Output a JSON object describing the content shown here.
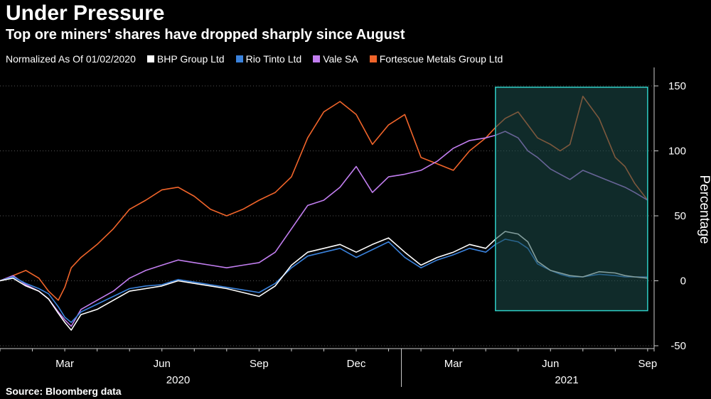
{
  "title": "Under Pressure",
  "subtitle": "Top ore miners' shares have dropped sharply since August",
  "legend_prefix": "Normalized As Of 01/02/2020",
  "source": "Source: Bloomberg data",
  "colors": {
    "background": "#000000",
    "grid": "#555555",
    "highlight_fill": "#1e4f4c",
    "highlight_stroke": "#2fd0c8"
  },
  "chart_data": {
    "type": "line",
    "title": "Under Pressure",
    "subtitle": "Top ore miners' shares have dropped sharply since August",
    "xlabel": "",
    "ylabel": "Percentage",
    "ylim": [
      -50,
      150
    ],
    "y_ticks": [
      -50,
      0,
      50,
      100,
      150
    ],
    "x_ticks": [
      "Mar",
      "Jun",
      "Sep",
      "Dec",
      "Mar",
      "Jun",
      "Sep"
    ],
    "x_tick_months": [
      2,
      5,
      8,
      11,
      14,
      17,
      20
    ],
    "x_year_labels": [
      "2020",
      "2021"
    ],
    "x_year_centers": [
      5.5,
      17.5
    ],
    "xlim": [
      0,
      20.2
    ],
    "grid": "horizontal dotted",
    "legend_position": "top",
    "highlight_region": {
      "x": [
        15.3,
        20.0
      ],
      "y": [
        -23,
        149
      ]
    },
    "series": [
      {
        "name": "BHP Group Ltd",
        "color": "#ffffff",
        "x": [
          0,
          0.4,
          0.8,
          1.2,
          1.5,
          1.8,
          2.0,
          2.2,
          2.5,
          3.0,
          3.5,
          4.0,
          4.5,
          5.0,
          5.5,
          6.0,
          6.5,
          7.0,
          7.5,
          8.0,
          8.5,
          9.0,
          9.5,
          10.0,
          10.5,
          11.0,
          11.5,
          12.0,
          12.5,
          13.0,
          13.5,
          14.0,
          14.5,
          15.0,
          15.3,
          15.6,
          16.0,
          16.3,
          16.6,
          17.0,
          17.3,
          17.6,
          18.0,
          18.5,
          19.0,
          19.3,
          19.6,
          20.0
        ],
        "y": [
          0,
          2,
          -4,
          -8,
          -14,
          -25,
          -32,
          -38,
          -26,
          -22,
          -15,
          -8,
          -6,
          -4,
          0,
          -2,
          -4,
          -6,
          -9,
          -12,
          -4,
          12,
          22,
          25,
          28,
          22,
          28,
          33,
          22,
          12,
          18,
          22,
          28,
          25,
          32,
          38,
          36,
          30,
          15,
          8,
          6,
          4,
          3,
          7,
          6,
          4,
          3,
          2
        ]
      },
      {
        "name": "Rio Tinto Ltd",
        "color": "#3a82dc",
        "x": [
          0,
          0.4,
          0.8,
          1.2,
          1.5,
          1.8,
          2.0,
          2.2,
          2.5,
          3.0,
          3.5,
          4.0,
          4.5,
          5.0,
          5.5,
          6.0,
          6.5,
          7.0,
          7.5,
          8.0,
          8.5,
          9.0,
          9.5,
          10.0,
          10.5,
          11.0,
          11.5,
          12.0,
          12.5,
          13.0,
          13.5,
          14.0,
          14.5,
          15.0,
          15.3,
          15.6,
          16.0,
          16.3,
          16.6,
          17.0,
          17.3,
          17.6,
          18.0,
          18.5,
          19.0,
          19.3,
          19.6,
          20.0
        ],
        "y": [
          0,
          3,
          -2,
          -6,
          -10,
          -20,
          -28,
          -32,
          -24,
          -18,
          -12,
          -6,
          -4,
          -3,
          1,
          -1,
          -3,
          -5,
          -7,
          -9,
          -2,
          10,
          19,
          22,
          25,
          18,
          24,
          30,
          18,
          10,
          16,
          20,
          25,
          22,
          28,
          32,
          30,
          25,
          13,
          8,
          5,
          3,
          3,
          5,
          4,
          3,
          3,
          3
        ]
      },
      {
        "name": "Vale SA",
        "color": "#c27ef0",
        "x": [
          0,
          0.4,
          0.8,
          1.2,
          1.5,
          1.8,
          2.0,
          2.2,
          2.5,
          3.0,
          3.5,
          4.0,
          4.5,
          5.0,
          5.5,
          6.0,
          6.5,
          7.0,
          7.5,
          8.0,
          8.5,
          9.0,
          9.5,
          10.0,
          10.5,
          11.0,
          11.5,
          12.0,
          12.5,
          13.0,
          13.5,
          14.0,
          14.5,
          15.0,
          15.3,
          15.6,
          16.0,
          16.3,
          16.6,
          17.0,
          17.3,
          17.6,
          18.0,
          18.5,
          19.0,
          19.3,
          19.6,
          20.0
        ],
        "y": [
          0,
          4,
          -3,
          -8,
          -14,
          -24,
          -30,
          -35,
          -22,
          -15,
          -8,
          2,
          8,
          12,
          16,
          14,
          12,
          10,
          12,
          14,
          22,
          40,
          58,
          62,
          72,
          88,
          68,
          80,
          82,
          85,
          92,
          102,
          108,
          110,
          112,
          115,
          110,
          100,
          95,
          86,
          82,
          78,
          85,
          80,
          75,
          72,
          68,
          62
        ]
      },
      {
        "name": "Fortescue Metals Group Ltd",
        "color": "#f0642a",
        "x": [
          0,
          0.4,
          0.8,
          1.2,
          1.5,
          1.8,
          2.0,
          2.2,
          2.5,
          3.0,
          3.5,
          4.0,
          4.5,
          5.0,
          5.5,
          6.0,
          6.5,
          7.0,
          7.5,
          8.0,
          8.5,
          9.0,
          9.5,
          10.0,
          10.5,
          11.0,
          11.5,
          12.0,
          12.5,
          13.0,
          13.5,
          14.0,
          14.5,
          15.0,
          15.3,
          15.6,
          16.0,
          16.3,
          16.6,
          17.0,
          17.3,
          17.6,
          18.0,
          18.5,
          19.0,
          19.3,
          19.6,
          20.0
        ],
        "y": [
          0,
          4,
          8,
          2,
          -8,
          -15,
          -5,
          10,
          18,
          28,
          40,
          55,
          62,
          70,
          72,
          65,
          55,
          50,
          55,
          62,
          68,
          80,
          110,
          130,
          138,
          128,
          105,
          120,
          128,
          95,
          90,
          85,
          100,
          110,
          118,
          125,
          130,
          120,
          110,
          105,
          100,
          105,
          142,
          125,
          95,
          88,
          75,
          62
        ]
      }
    ]
  }
}
